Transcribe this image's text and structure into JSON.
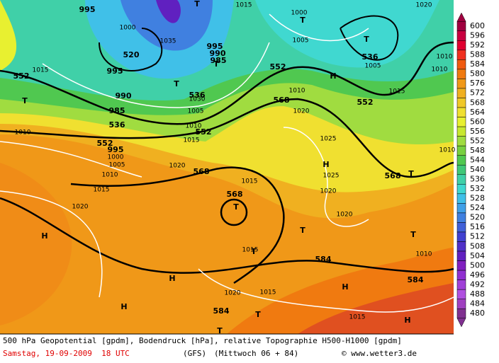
{
  "legend": {
    "values": [
      600,
      596,
      592,
      588,
      584,
      580,
      576,
      572,
      568,
      564,
      560,
      556,
      552,
      548,
      544,
      540,
      536,
      532,
      528,
      524,
      520,
      516,
      512,
      508,
      504,
      500,
      496,
      492,
      488,
      484,
      480
    ],
    "colors": [
      "#a00040",
      "#c80040",
      "#e00030",
      "#f03020",
      "#f05a10",
      "#f07a10",
      "#f09818",
      "#f0b020",
      "#f0c828",
      "#f0e030",
      "#e8f030",
      "#c8e830",
      "#a0dc40",
      "#78d040",
      "#50c850",
      "#40c878",
      "#40d0a8",
      "#40d8d0",
      "#40c0e8",
      "#40a0e8",
      "#4080e0",
      "#4060d8",
      "#4040d0",
      "#5030c8",
      "#6020c0",
      "#8020c0",
      "#9030d0",
      "#a040d8",
      "#b050e0",
      "#a040c0",
      "#803090"
    ]
  },
  "map_labels": [
    "552",
    "520",
    "536",
    "552",
    "552",
    "536",
    "552",
    "536",
    "552",
    "568",
    "568",
    "568",
    "568",
    "584",
    "584",
    "584",
    "1015",
    "1010",
    "1005",
    "1010",
    "1015",
    "1020",
    "1000",
    "995",
    "990",
    "985",
    "1035",
    "995",
    "990",
    "985",
    "1015",
    "1000",
    "1005",
    "1005",
    "1015",
    "1010",
    "1020",
    "1025",
    "1025",
    "1020",
    "1020",
    "1015",
    "1020",
    "1015",
    "1020",
    "1015",
    "1015",
    "1020",
    "1010",
    "1010",
    "1010",
    "1010",
    "995",
    "1005",
    "1010",
    "1015",
    "995",
    "1000",
    "1030",
    "T",
    "T",
    "T",
    "T",
    "T",
    "T",
    "H",
    "H",
    "T",
    "T",
    "T",
    "T",
    "H",
    "H",
    "H",
    "H",
    "H",
    "T",
    "T",
    "T"
  ],
  "footer": {
    "line1": "500 hPa Geopotential [gpdm], Bodendruck [hPa], relative Topographie H500-H1000 [gpdm]",
    "date": "Samstag, 19-09-2009  18 UTC",
    "model": "(GFS)",
    "run": "(Mittwoch 06 + 84)",
    "credit": "© www.wetter3.de"
  }
}
